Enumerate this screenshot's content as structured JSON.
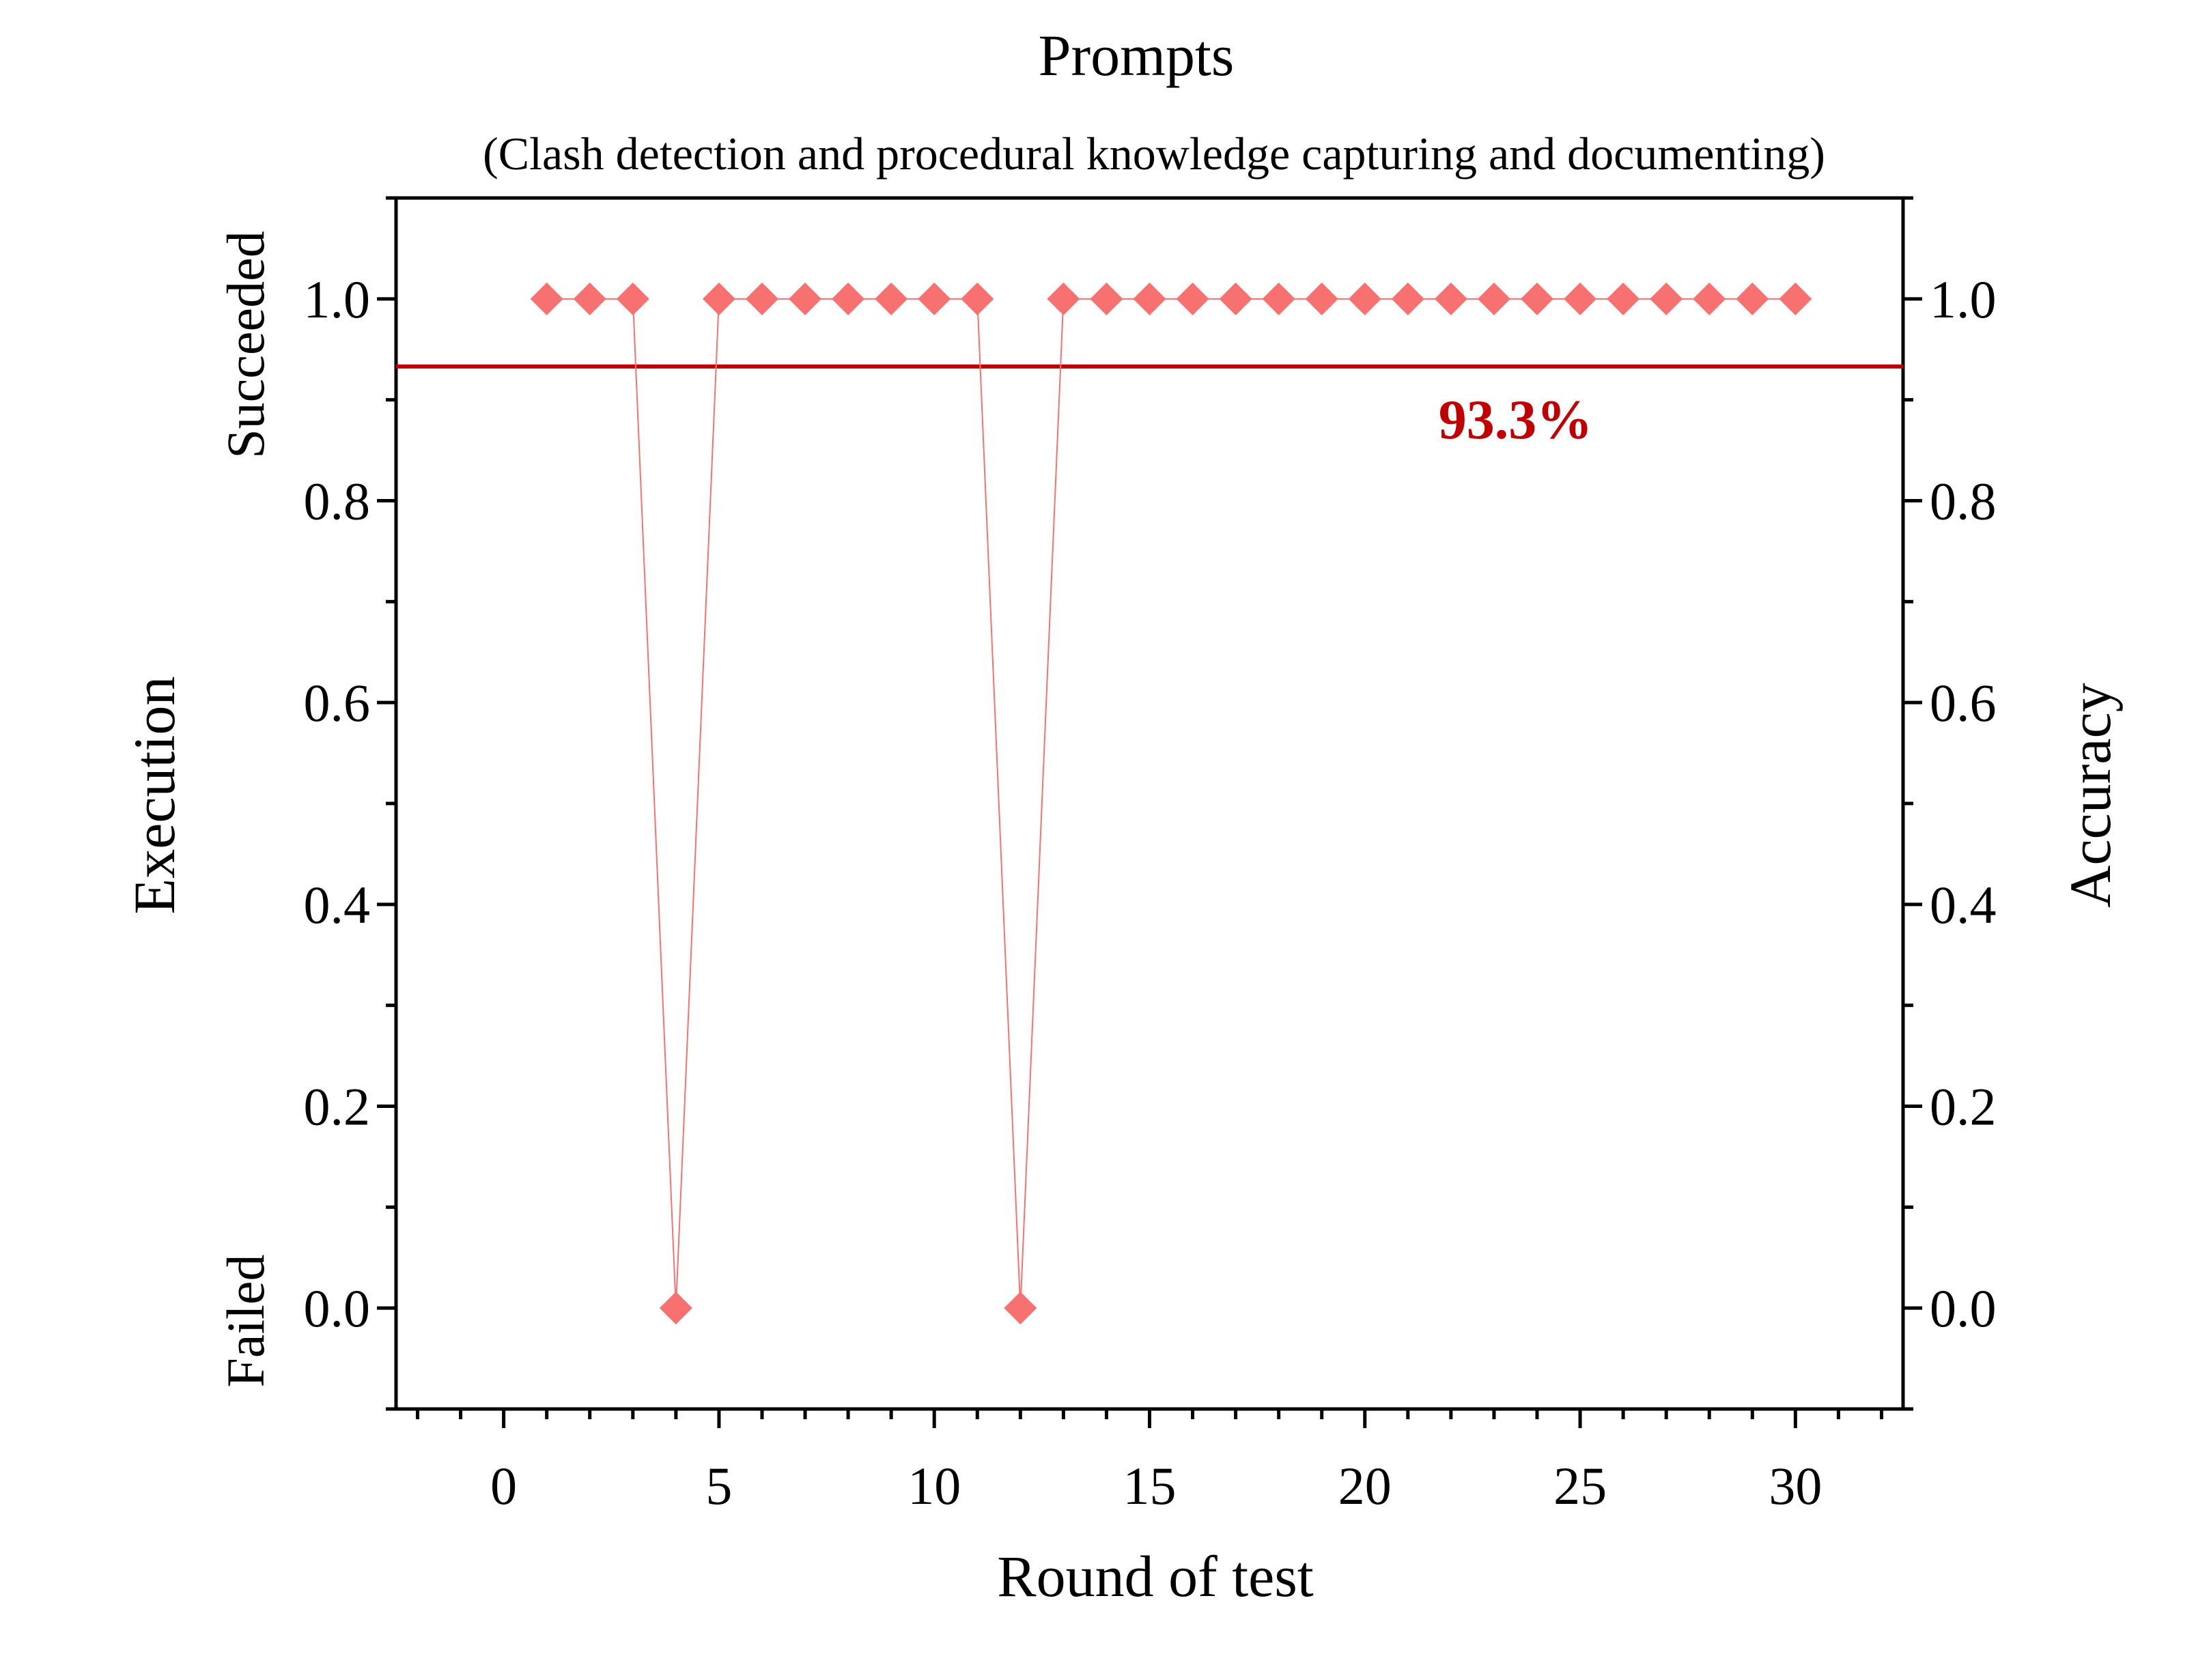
{
  "chart_data": {
    "type": "scatter",
    "title": "Prompts",
    "subtitle": "(Clash detection and procedural knowledge capturing and documenting)",
    "xlabel": "Round of test",
    "ylabel_left": "Execution",
    "ylabel_right": "Accuracy",
    "y_top_label": "Succeeded",
    "y_bottom_label": "Failed",
    "xlim": [
      -2.5,
      32.5
    ],
    "ylim": [
      -0.1,
      1.1
    ],
    "x_ticks": [
      0,
      5,
      10,
      15,
      20,
      25,
      30
    ],
    "x_tick_labels": [
      "0",
      "5",
      "10",
      "15",
      "20",
      "25",
      "30"
    ],
    "y_ticks": [
      0.0,
      0.2,
      0.4,
      0.6,
      0.8,
      1.0
    ],
    "y_tick_labels": [
      "0.0",
      "0.2",
      "0.4",
      "0.6",
      "0.8",
      "1.0"
    ],
    "grid": false,
    "series": [
      {
        "x": [
          1,
          2,
          3,
          4,
          5,
          6,
          7,
          8,
          9,
          10,
          11,
          12,
          13,
          14,
          15,
          16,
          17,
          18,
          19,
          20,
          21,
          22,
          23,
          24,
          25,
          26,
          27,
          28,
          29,
          30
        ],
        "y": [
          1,
          1,
          1,
          0,
          1,
          1,
          1,
          1,
          1,
          1,
          1,
          0,
          1,
          1,
          1,
          1,
          1,
          1,
          1,
          1,
          1,
          1,
          1,
          1,
          1,
          1,
          1,
          1,
          1,
          1
        ],
        "marker": "diamond",
        "color": "#f87171"
      }
    ],
    "reference_line": {
      "y": 0.933,
      "color": "#c00000"
    },
    "annotation": {
      "text": "93.3%",
      "color": "#c00000"
    }
  }
}
